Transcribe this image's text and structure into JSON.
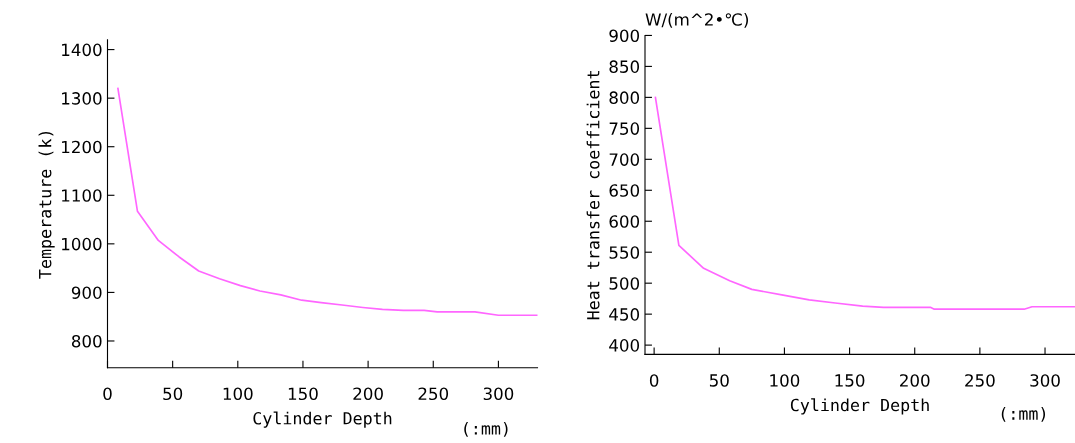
{
  "chart_data": [
    {
      "type": "line",
      "xlabel": "Cylinder Depth",
      "ylabel": "Temperature (k)",
      "annotations": [
        "(:mm)"
      ],
      "x": [
        8,
        23,
        39,
        55,
        70,
        86,
        102,
        117,
        133,
        149,
        164,
        180,
        196,
        211,
        227,
        243,
        253,
        282,
        300,
        330
      ],
      "series": [
        {
          "color": "#ff66ff",
          "values": [
            1320,
            1067,
            1007,
            973,
            944,
            928,
            914,
            903,
            895,
            884,
            879,
            874,
            869,
            865,
            863,
            863,
            860,
            860,
            853,
            853
          ]
        }
      ],
      "xlim": [
        0,
        330
      ],
      "xticks": [
        0,
        50,
        100,
        150,
        200,
        250,
        300
      ],
      "ylim": [
        745,
        1420
      ],
      "yticks": [
        800,
        900,
        1000,
        1100,
        1200,
        1300,
        1400
      ],
      "grid": false
    },
    {
      "type": "line",
      "xlabel": "Cylinder Depth",
      "ylabel": "Heat transfer coefficient",
      "annotations": [
        "W/(m^2•℃)",
        "(:mm)"
      ],
      "x": [
        1,
        19,
        38,
        58,
        75,
        98,
        119,
        139,
        160,
        176,
        212,
        215,
        284,
        290,
        323
      ],
      "series": [
        {
          "color": "#ff66ff",
          "values": [
            800,
            561,
            524,
            504,
            490,
            481,
            473,
            468,
            463,
            461,
            461,
            458,
            458,
            462,
            462
          ]
        }
      ],
      "xlim": [
        -7,
        323
      ],
      "xticks": [
        0,
        50,
        100,
        150,
        200,
        250,
        300
      ],
      "ylim": [
        385,
        900
      ],
      "yticks": [
        400,
        450,
        500,
        550,
        600,
        650,
        700,
        750,
        800,
        850,
        900
      ],
      "grid": false
    }
  ]
}
